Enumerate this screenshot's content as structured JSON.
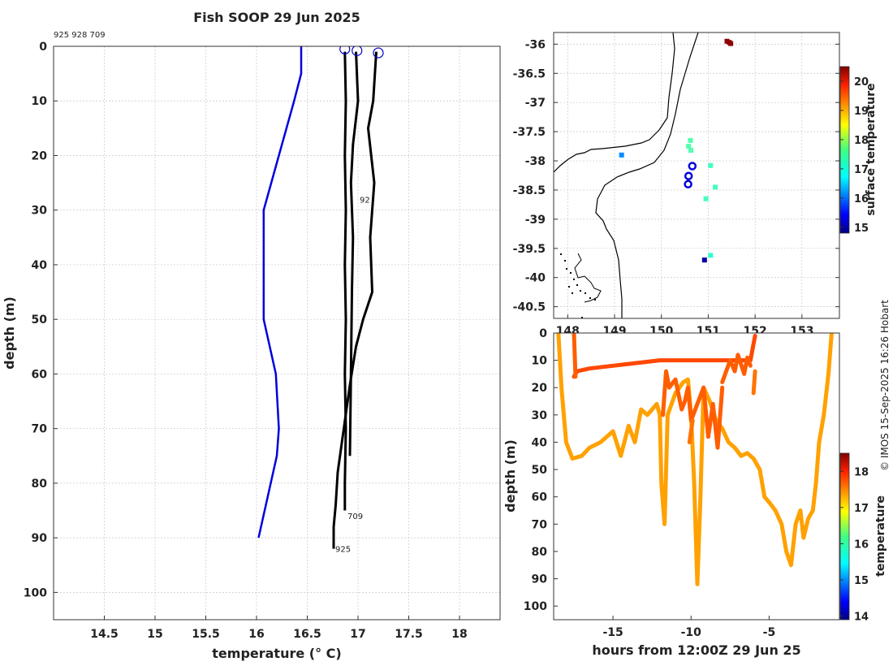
{
  "chart_data": [
    {
      "type": "line",
      "panel": "profile",
      "title": "Fish SOOP 29 Jun 2025",
      "id_header": "925 928 709",
      "xlabel": "temperature (° C)",
      "ylabel": "depth (m)",
      "xlim": [
        14.0,
        18.4
      ],
      "ylim": [
        105,
        0
      ],
      "xticks": [
        "14.5",
        "15",
        "15.5",
        "16",
        "16.5",
        "17",
        "17.5",
        "18"
      ],
      "yticks": [
        "0",
        "10",
        "20",
        "30",
        "40",
        "50",
        "60",
        "70",
        "80",
        "90",
        "100"
      ],
      "grid": true,
      "climatology": {
        "name": "climatology",
        "color": "#0000dd",
        "temps": [
          16.44,
          16.44,
          16.37,
          16.22,
          16.07,
          16.07,
          16.19,
          16.22,
          16.2,
          16.14,
          16.02
        ],
        "depths": [
          0,
          5,
          10,
          20,
          30,
          50,
          60,
          70,
          75,
          80,
          90
        ]
      },
      "profiles": [
        {
          "id": "709",
          "color": "#000000",
          "temps": [
            16.87,
            16.88,
            16.87,
            16.88,
            16.87,
            16.88,
            16.87,
            16.88,
            16.87,
            16.87
          ],
          "depths": [
            1,
            10,
            20,
            30,
            40,
            50,
            60,
            70,
            80,
            85
          ]
        },
        {
          "id": "925",
          "color": "#000000",
          "temps": [
            17.18,
            17.15,
            17.1,
            17.16,
            17.12,
            17.14,
            17.05,
            16.98,
            16.92,
            16.86,
            16.8,
            16.78,
            16.76,
            16.76
          ],
          "depths": [
            1,
            10,
            15,
            25,
            35,
            45,
            50,
            55,
            62,
            70,
            78,
            84,
            88,
            92
          ]
        },
        {
          "id": "928",
          "color": "#000000",
          "temps": [
            16.98,
            17.0,
            16.95,
            16.93,
            16.95,
            16.94,
            16.93,
            16.92
          ],
          "depths": [
            1,
            10,
            18,
            25,
            35,
            45,
            60,
            75
          ]
        }
      ],
      "profile_labels": [
        {
          "text": "709",
          "x": 16.88,
          "y": 86
        },
        {
          "text": "925",
          "x": 16.76,
          "y": 92
        },
        {
          "text": "92",
          "x": 17.0,
          "y": 28
        }
      ],
      "surface_circles": [
        {
          "x": 16.87,
          "y": 0.5
        },
        {
          "x": 16.99,
          "y": 0.8
        },
        {
          "x": 17.2,
          "y": 1.2
        }
      ]
    },
    {
      "type": "scatter",
      "panel": "map",
      "xlim": [
        147.7,
        153.8
      ],
      "ylim": [
        -40.7,
        -35.8
      ],
      "xticks": [
        "148",
        "149",
        "150",
        "151",
        "152",
        "153"
      ],
      "yticks": [
        "-36",
        "-36.5",
        "-37",
        "-37.5",
        "-38",
        "-38.5",
        "-39",
        "-39.5",
        "-40",
        "-40.5"
      ],
      "colorbar": {
        "label": "surface temperature",
        "min": 14.8,
        "max": 20.5,
        "ticks": [
          "15",
          "16",
          "17",
          "18",
          "19",
          "20"
        ]
      },
      "points": [
        {
          "lon": 151.4,
          "lat": -35.95,
          "temp": 20.4
        },
        {
          "lon": 151.45,
          "lat": -35.97,
          "temp": 20.4
        },
        {
          "lon": 151.48,
          "lat": -35.99,
          "temp": 20.4
        },
        {
          "lon": 150.62,
          "lat": -37.65,
          "temp": 17.4
        },
        {
          "lon": 150.58,
          "lat": -37.75,
          "temp": 17.4
        },
        {
          "lon": 150.63,
          "lat": -37.82,
          "temp": 17.4
        },
        {
          "lon": 149.15,
          "lat": -37.9,
          "temp": 16.3
        },
        {
          "lon": 151.05,
          "lat": -38.08,
          "temp": 17.3
        },
        {
          "lon": 150.95,
          "lat": -38.65,
          "temp": 17.3
        },
        {
          "lon": 151.15,
          "lat": -38.45,
          "temp": 17.3
        },
        {
          "lon": 151.05,
          "lat": -39.62,
          "temp": 17.2
        },
        {
          "lon": 150.92,
          "lat": -39.7,
          "temp": 15.0
        }
      ],
      "profile_locations": [
        {
          "lon": 150.66,
          "lat": -38.09
        },
        {
          "lon": 150.58,
          "lat": -38.26
        },
        {
          "lon": 150.57,
          "lat": -38.4
        }
      ]
    },
    {
      "type": "line",
      "panel": "timeseries",
      "xlabel": "hours from 12:00Z 29 Jun 25",
      "ylabel": "depth (m)",
      "xlim": [
        -18.8,
        -0.5
      ],
      "ylim": [
        105,
        0
      ],
      "xticks": [
        "-15",
        "-10",
        "-5"
      ],
      "yticks": [
        "0",
        "10",
        "20",
        "30",
        "40",
        "50",
        "60",
        "70",
        "80",
        "90",
        "100"
      ],
      "colorbar": {
        "label": "temperature",
        "min": 13.9,
        "max": 18.5,
        "ticks": [
          "14",
          "15",
          "16",
          "17",
          "18"
        ]
      },
      "tracks": [
        {
          "temp": 17.6,
          "hours": [
            -17.5,
            -17.3,
            -16.5,
            -15.0,
            -13.5,
            -12.0,
            -11.0,
            -10.0,
            -8.8,
            -7.5,
            -6.2,
            -5.9
          ],
          "depths": [
            16,
            14,
            13,
            12,
            11,
            10,
            10,
            10,
            10,
            10,
            10,
            1
          ]
        },
        {
          "temp": 17.5,
          "hours": [
            -11.8,
            -11.6,
            -11.4,
            -11.0,
            -10.6,
            -10.4,
            -10.2,
            -10.0,
            -9.6,
            -9.2,
            -8.9,
            -8.6,
            -8.3,
            -8.0
          ],
          "depths": [
            30,
            14,
            20,
            17,
            28,
            25,
            20,
            32,
            26,
            20,
            38,
            26,
            42,
            20
          ]
        },
        {
          "temp": 17.5,
          "hours": [
            -8.0,
            -7.5,
            -7.2,
            -7.0,
            -6.6,
            -6.4,
            -6.2
          ],
          "depths": [
            18,
            10,
            14,
            8,
            15,
            9,
            12
          ]
        },
        {
          "temp": 17.4,
          "hours": [
            -6.0,
            -5.9
          ],
          "depths": [
            22,
            14
          ]
        },
        {
          "temp": 17.5,
          "hours": [
            -17.5,
            -17.4
          ],
          "depths": [
            0,
            16
          ]
        },
        {
          "temp": 17.4,
          "hours": [
            -10.1,
            -9.9
          ],
          "depths": [
            40,
            32
          ]
        },
        {
          "temp": 17.2,
          "hours": [
            -18.5,
            -18.3,
            -18.0,
            -17.6,
            -17.0,
            -16.5,
            -15.8,
            -15.0,
            -14.5,
            -14.0,
            -13.6,
            -13.2,
            -12.8,
            -12.5,
            -12.2,
            -12.0,
            -11.9,
            -11.7,
            -11.5,
            -11.0,
            -10.5,
            -10.2,
            -10.0,
            -9.8,
            -9.6,
            -9.4,
            -9.2,
            -8.8,
            -8.4,
            -8.0,
            -7.6,
            -7.2,
            -6.8,
            -6.4,
            -6.0,
            -5.6,
            -5.3,
            -5.0,
            -4.6,
            -4.2,
            -3.9,
            -3.6,
            -3.3,
            -3.0,
            -2.8,
            -2.5,
            -2.2,
            -2.0,
            -1.8,
            -1.5,
            -1.2,
            -1.0
          ],
          "depths": [
            0,
            20,
            40,
            46,
            45,
            42,
            40,
            36,
            45,
            34,
            40,
            28,
            30,
            28,
            26,
            30,
            55,
            70,
            30,
            22,
            18,
            17,
            30,
            55,
            92,
            60,
            20,
            25,
            32,
            35,
            40,
            42,
            45,
            44,
            46,
            50,
            60,
            62,
            65,
            70,
            80,
            85,
            70,
            65,
            75,
            68,
            65,
            55,
            40,
            30,
            15,
            0
          ]
        }
      ]
    }
  ],
  "watermark": "© IMOS 15-Sep-2025 16:26 Hobart"
}
